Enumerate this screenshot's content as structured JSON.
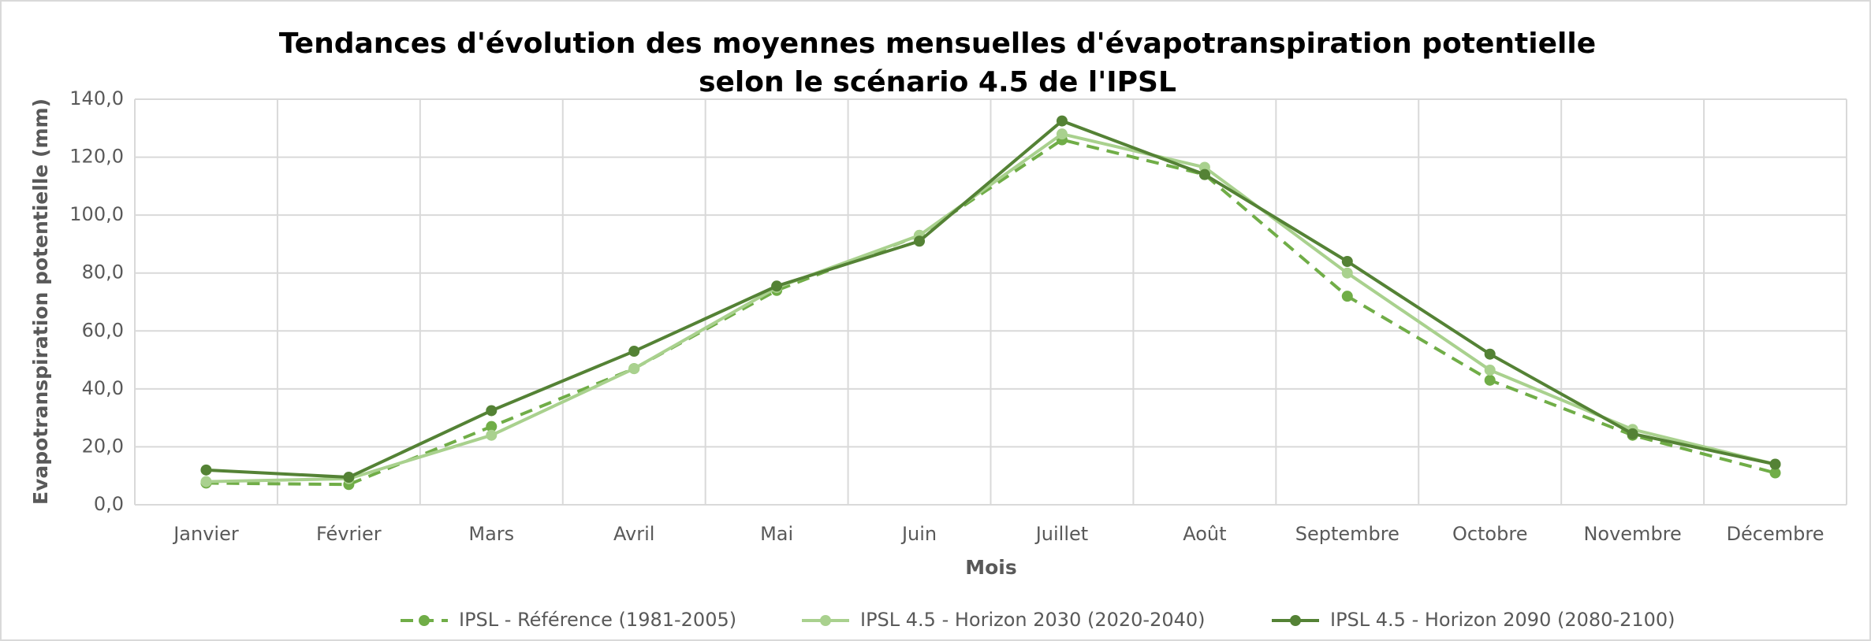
{
  "chart_data": {
    "type": "line",
    "title": [
      "Tendances d'évolution des moyennes mensuelles d'évapotranspiration potentielle",
      "selon le scénario 4.5 de l'IPSL"
    ],
    "x_label": "Mois",
    "y_label": "Evapotranspiration potentielle (mm)",
    "categories": [
      "Janvier",
      "Février",
      "Mars",
      "Avril",
      "Mai",
      "Juin",
      "Juillet",
      "Août",
      "Septembre",
      "Octobre",
      "Novembre",
      "Décembre"
    ],
    "series": [
      {
        "name": "IPSL - Référence (1981-2005)",
        "color": "#70ad47",
        "dashed": true,
        "values": [
          7.5,
          7,
          27,
          47,
          74,
          93,
          126,
          114,
          72,
          43,
          24,
          11
        ]
      },
      {
        "name": "IPSL 4.5 - Horizon 2030 (2020-2040)",
        "color": "#a9d18e",
        "dashed": false,
        "values": [
          8,
          9,
          24,
          47,
          75,
          93,
          128,
          116.5,
          80,
          46.5,
          26,
          14
        ]
      },
      {
        "name": "IPSL 4.5 - Horizon 2090 (2080-2100)",
        "color": "#548235",
        "dashed": false,
        "values": [
          12,
          9.5,
          32.5,
          53,
          75.5,
          91,
          132.5,
          114,
          84,
          52,
          24.5,
          14
        ]
      }
    ],
    "ylim": [
      0,
      140
    ],
    "yticks": [
      {
        "value": 0,
        "label": "0,0"
      },
      {
        "value": 20,
        "label": "20,0"
      },
      {
        "value": 40,
        "label": "40,0"
      },
      {
        "value": 60,
        "label": "60,0"
      },
      {
        "value": 80,
        "label": "80,0"
      },
      {
        "value": 100,
        "label": "100,0"
      },
      {
        "value": 120,
        "label": "120,0"
      },
      {
        "value": 140,
        "label": "140,0"
      }
    ],
    "grid": true,
    "legend": "bottom"
  }
}
